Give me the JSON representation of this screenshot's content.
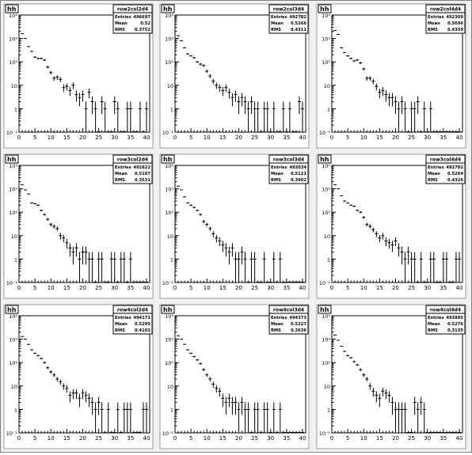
{
  "canvas": {
    "background": "#f0f0f0",
    "pad_background": "#ffffff",
    "frame_color": "#000000",
    "data_color": "#000000"
  },
  "chart_data": [
    {
      "type": "histogram",
      "pad_label": "hh",
      "stats": {
        "name": "row2col2d4",
        "entries_label": "Entries",
        "entries": "496697",
        "mean_label": "Mean",
        "mean": "0.52",
        "rms_label": "RMS",
        "rms": "0.3752"
      },
      "xlim": [
        0,
        41
      ],
      "log_y": true,
      "ylim": [
        0.1,
        10000
      ],
      "xticks": [
        "0",
        "5",
        "10",
        "15",
        "20",
        "25",
        "30",
        "35",
        "40"
      ],
      "yticks": [
        "10⁻¹",
        "1",
        "10",
        "10²",
        "10³",
        "10⁴"
      ],
      "x": [
        1,
        2,
        3,
        4,
        5,
        6,
        7,
        8,
        9,
        10,
        11,
        12,
        13,
        14,
        15,
        16,
        17,
        18,
        19,
        20,
        21,
        22,
        23,
        24,
        25,
        26,
        27,
        28,
        29,
        30,
        31,
        32,
        33,
        34,
        35,
        36,
        37,
        38,
        39,
        40
      ],
      "values": [
        1600,
        1000,
        450,
        280,
        160,
        140,
        140,
        120,
        60,
        35,
        20,
        22,
        18,
        8,
        9,
        6,
        10,
        4,
        3,
        4,
        1,
        5,
        2,
        1,
        0,
        2,
        1,
        0,
        0,
        2,
        1,
        0,
        0,
        1,
        1,
        0,
        0,
        1,
        0,
        1
      ]
    },
    {
      "type": "histogram",
      "pad_label": "hh",
      "stats": {
        "name": "row2col3d4",
        "entries_label": "Entries",
        "entries": "492782",
        "mean_label": "Mean",
        "mean": "0.5266",
        "rms_label": "RMS",
        "rms": "0.4311"
      },
      "xlim": [
        0,
        41
      ],
      "log_y": true,
      "ylim": [
        0.1,
        10000
      ],
      "xticks": [
        "0",
        "5",
        "10",
        "15",
        "20",
        "25",
        "30",
        "35",
        "40"
      ],
      "yticks": [
        "10⁻¹",
        "1",
        "10",
        "10²",
        "10³",
        "10⁴"
      ],
      "x": [
        1,
        2,
        3,
        4,
        5,
        6,
        7,
        8,
        9,
        10,
        11,
        12,
        13,
        14,
        15,
        16,
        17,
        18,
        19,
        20,
        21,
        22,
        23,
        24,
        25,
        26,
        27,
        28,
        29,
        30,
        31,
        32,
        33,
        34,
        35,
        36,
        37,
        38,
        39,
        40
      ],
      "values": [
        1300,
        800,
        400,
        220,
        180,
        150,
        100,
        80,
        70,
        40,
        25,
        15,
        10,
        8,
        6,
        8,
        5,
        3,
        4,
        2,
        3,
        2,
        1,
        2,
        1,
        1,
        0,
        1,
        1,
        0,
        1,
        0,
        0,
        1,
        0,
        1,
        0,
        0,
        2,
        1
      ]
    },
    {
      "type": "histogram",
      "pad_label": "hh",
      "stats": {
        "name": "row2col4d4",
        "entries_label": "Entries",
        "entries": "492309",
        "mean_label": "Mean",
        "mean": "0.5696",
        "rms_label": "RMS",
        "rms": "0.4359"
      },
      "xlim": [
        0,
        41
      ],
      "log_y": true,
      "ylim": [
        0.1,
        10000
      ],
      "xticks": [
        "0",
        "5",
        "10",
        "15",
        "20",
        "25",
        "30",
        "35",
        "40"
      ],
      "yticks": [
        "10⁻¹",
        "1",
        "10",
        "10²",
        "10³",
        "10⁴"
      ],
      "x": [
        1,
        2,
        3,
        4,
        5,
        6,
        7,
        8,
        9,
        10,
        11,
        12,
        13,
        14,
        15,
        16,
        17,
        18,
        19,
        20,
        21,
        22,
        23,
        24,
        25,
        26,
        27,
        28,
        29,
        30,
        31,
        32,
        33,
        34,
        35,
        36,
        37,
        38,
        39,
        40
      ],
      "values": [
        2200,
        1500,
        400,
        250,
        180,
        140,
        110,
        120,
        90,
        50,
        20,
        20,
        15,
        9,
        5,
        6,
        4,
        3,
        3,
        2,
        1,
        2,
        1,
        0,
        1,
        1,
        2,
        0,
        1,
        0,
        1,
        0,
        0,
        0,
        0,
        0,
        0,
        0,
        0,
        0
      ]
    },
    {
      "type": "histogram",
      "pad_label": "hh",
      "stats": {
        "name": "row3col2d4",
        "entries_label": "Entries",
        "entries": "492822",
        "mean_label": "Mean",
        "mean": "0.5107",
        "rms_label": "RMS",
        "rms": "0.3531"
      },
      "xlim": [
        0,
        41
      ],
      "log_y": true,
      "ylim": [
        0.1,
        10000
      ],
      "xticks": [
        "0",
        "5",
        "10",
        "15",
        "20",
        "25",
        "30",
        "35",
        "40"
      ],
      "yticks": [
        "10⁻¹",
        "1",
        "10",
        "10²",
        "10³",
        "10⁴"
      ],
      "x": [
        1,
        2,
        3,
        4,
        5,
        6,
        7,
        8,
        9,
        10,
        11,
        12,
        13,
        14,
        15,
        16,
        17,
        18,
        19,
        20,
        21,
        22,
        23,
        24,
        25,
        26,
        27,
        28,
        29,
        30,
        31,
        32,
        33,
        34,
        35,
        36,
        37,
        38,
        39,
        40
      ],
      "values": [
        1500,
        900,
        600,
        250,
        230,
        200,
        120,
        80,
        50,
        30,
        25,
        20,
        10,
        8,
        5,
        3,
        2,
        3,
        1,
        2,
        2,
        1,
        1,
        0,
        1,
        1,
        0,
        0,
        1,
        1,
        0,
        1,
        1,
        0,
        1,
        0,
        0,
        0,
        0,
        0
      ]
    },
    {
      "type": "histogram",
      "pad_label": "hh",
      "stats": {
        "name": "row3col3d4",
        "entries_label": "Entries",
        "entries": "493034",
        "mean_label": "Mean",
        "mean": "0.5121",
        "rms_label": "RMS",
        "rms": "0.3902"
      },
      "xlim": [
        0,
        41
      ],
      "log_y": true,
      "ylim": [
        0.1,
        10000
      ],
      "xticks": [
        "0",
        "5",
        "10",
        "15",
        "20",
        "25",
        "30",
        "35",
        "40"
      ],
      "yticks": [
        "10⁻¹",
        "1",
        "10",
        "10²",
        "10³",
        "10⁴"
      ],
      "x": [
        1,
        2,
        3,
        4,
        5,
        6,
        7,
        8,
        9,
        10,
        11,
        12,
        13,
        14,
        15,
        16,
        17,
        18,
        19,
        20,
        21,
        22,
        23,
        24,
        25,
        26,
        27,
        28,
        29,
        30,
        31,
        32,
        33,
        34,
        35,
        36,
        37,
        38,
        39,
        40
      ],
      "values": [
        1300,
        900,
        450,
        250,
        200,
        160,
        120,
        80,
        40,
        30,
        20,
        12,
        8,
        6,
        4,
        3,
        2,
        3,
        1,
        1,
        2,
        1,
        0,
        1,
        1,
        0,
        0,
        1,
        0,
        0,
        1,
        0,
        1,
        0,
        0,
        0,
        0,
        0,
        0,
        0
      ]
    },
    {
      "type": "histogram",
      "pad_label": "hh",
      "stats": {
        "name": "row3col4d4",
        "entries_label": "Entries",
        "entries": "492782",
        "mean_label": "Mean",
        "mean": "0.5264",
        "rms_label": "RMS",
        "rms": "0.4326"
      },
      "xlim": [
        0,
        41
      ],
      "log_y": true,
      "ylim": [
        0.1,
        10000
      ],
      "xticks": [
        "0",
        "5",
        "10",
        "15",
        "20",
        "25",
        "30",
        "35",
        "40"
      ],
      "yticks": [
        "10⁻¹",
        "1",
        "10",
        "10²",
        "10³",
        "10⁴"
      ],
      "x": [
        1,
        2,
        3,
        4,
        5,
        6,
        7,
        8,
        9,
        10,
        11,
        12,
        13,
        14,
        15,
        16,
        17,
        18,
        19,
        20,
        21,
        22,
        23,
        24,
        25,
        26,
        27,
        28,
        29,
        30,
        31,
        32,
        33,
        34,
        35,
        36,
        37,
        38,
        39,
        40
      ],
      "values": [
        1500,
        1000,
        500,
        300,
        250,
        200,
        180,
        120,
        100,
        60,
        30,
        25,
        18,
        12,
        8,
        10,
        6,
        5,
        4,
        6,
        3,
        2,
        1,
        2,
        1,
        1,
        0,
        1,
        0,
        0,
        1,
        1,
        0,
        0,
        1,
        1,
        0,
        0,
        1,
        1
      ]
    },
    {
      "type": "histogram",
      "pad_label": "hh",
      "stats": {
        "name": "row4col2d4",
        "entries_label": "Entries",
        "entries": "494171",
        "mean_label": "Mean",
        "mean": "0.5295",
        "rms_label": "RMS",
        "rms": "0.4102"
      },
      "xlim": [
        0,
        41
      ],
      "log_y": true,
      "ylim": [
        0.1,
        10000
      ],
      "xticks": [
        "0",
        "5",
        "10",
        "15",
        "20",
        "25",
        "30",
        "35",
        "40"
      ],
      "yticks": [
        "10⁻¹",
        "1",
        "10",
        "10²",
        "10³",
        "10⁴"
      ],
      "x": [
        1,
        2,
        3,
        4,
        5,
        6,
        7,
        8,
        9,
        10,
        11,
        12,
        13,
        14,
        15,
        16,
        17,
        18,
        19,
        20,
        21,
        22,
        23,
        24,
        25,
        26,
        27,
        28,
        29,
        30,
        31,
        32,
        33,
        34,
        35,
        36,
        37,
        38,
        39,
        40
      ],
      "values": [
        1300,
        1000,
        600,
        350,
        250,
        200,
        150,
        100,
        60,
        40,
        30,
        20,
        15,
        10,
        8,
        4,
        5,
        5,
        3,
        5,
        4,
        3,
        2,
        1,
        2,
        1,
        0,
        1,
        0,
        0,
        1,
        0,
        1,
        1,
        1,
        0,
        0,
        0,
        1,
        1
      ]
    },
    {
      "type": "histogram",
      "pad_label": "hh",
      "stats": {
        "name": "row4col3d4",
        "entries_label": "Entries",
        "entries": "494373",
        "mean_label": "Mean",
        "mean": "0.5227",
        "rms_label": "RMS",
        "rms": "0.3636"
      },
      "xlim": [
        0,
        41
      ],
      "log_y": true,
      "ylim": [
        0.1,
        10000
      ],
      "xticks": [
        "0",
        "5",
        "10",
        "15",
        "20",
        "25",
        "30",
        "35",
        "40"
      ],
      "yticks": [
        "10⁻¹",
        "1",
        "10",
        "10²",
        "10³",
        "10⁴"
      ],
      "x": [
        1,
        2,
        3,
        4,
        5,
        6,
        7,
        8,
        9,
        10,
        11,
        12,
        13,
        14,
        15,
        16,
        17,
        18,
        19,
        20,
        21,
        22,
        23,
        24,
        25,
        26,
        27,
        28,
        29,
        30,
        31,
        32,
        33,
        34,
        35,
        36,
        37,
        38,
        39,
        40
      ],
      "values": [
        1400,
        1000,
        600,
        350,
        250,
        180,
        130,
        90,
        50,
        30,
        20,
        12,
        8,
        6,
        3,
        2,
        3,
        2,
        2,
        1,
        2,
        1,
        1,
        0,
        1,
        1,
        0,
        1,
        1,
        0,
        1,
        0,
        1,
        0,
        0,
        0,
        0,
        0,
        0,
        0
      ]
    },
    {
      "type": "histogram",
      "pad_label": "hh",
      "stats": {
        "name": "row4col4d4",
        "entries_label": "Entries",
        "entries": "493885",
        "mean_label": "Mean",
        "mean": "0.5276",
        "rms_label": "RMS",
        "rms": "0.3135"
      },
      "xlim": [
        0,
        41
      ],
      "log_y": true,
      "ylim": [
        0.1,
        10000
      ],
      "xticks": [
        "0",
        "5",
        "10",
        "15",
        "20",
        "25",
        "30",
        "35",
        "40"
      ],
      "yticks": [
        "10⁻¹",
        "1",
        "10",
        "10²",
        "10³",
        "10⁴"
      ],
      "x": [
        1,
        2,
        3,
        4,
        5,
        6,
        7,
        8,
        9,
        10,
        11,
        12,
        13,
        14,
        15,
        16,
        17,
        18,
        19,
        20,
        21,
        22,
        23,
        24,
        25,
        26,
        27,
        28,
        29,
        30,
        31,
        32,
        33,
        34,
        35,
        36,
        37,
        38,
        39,
        40
      ],
      "values": [
        1500,
        900,
        500,
        300,
        200,
        160,
        110,
        80,
        50,
        30,
        20,
        10,
        6,
        4,
        3,
        6,
        5,
        4,
        2,
        1,
        1,
        1,
        1,
        0,
        0,
        2,
        1,
        2,
        1,
        0,
        0,
        0,
        0,
        0,
        0,
        0,
        0,
        0,
        0,
        0
      ]
    }
  ]
}
